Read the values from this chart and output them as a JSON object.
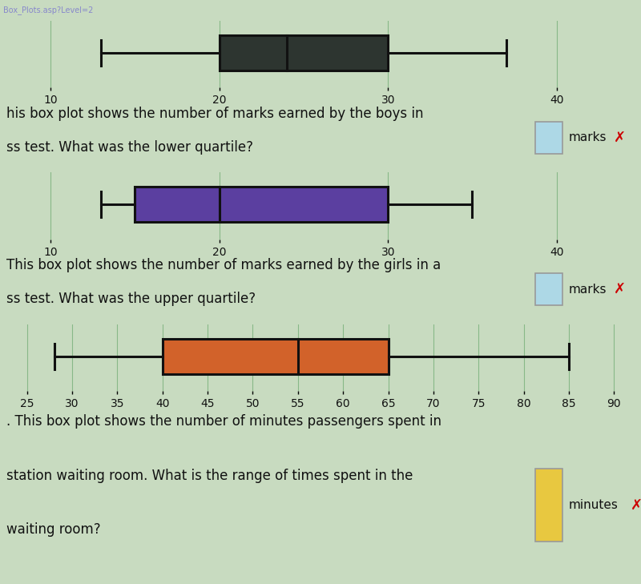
{
  "plots": [
    {
      "whisker_min": 13,
      "q1": 20,
      "median": 24,
      "q3": 30,
      "whisker_max": 37,
      "color": "#2d3530",
      "edge_color": "#111111",
      "axis_min": 7,
      "axis_max": 45,
      "ticks": [
        10,
        20,
        30,
        40
      ],
      "question_text1": "his box plot shows the number of marks earned by the boys in",
      "question_text2": "ss test. What was the lower quartile?",
      "answer_label": "marks",
      "answer_box_color": "#add8e6",
      "cross_color": "#cc0000"
    },
    {
      "whisker_min": 13,
      "q1": 15,
      "median": 20,
      "q3": 30,
      "whisker_max": 35,
      "color": "#5b3fa0",
      "edge_color": "#111111",
      "axis_min": 7,
      "axis_max": 45,
      "ticks": [
        10,
        20,
        30,
        40
      ],
      "question_text1": "This box plot shows the number of marks earned by the girls in a",
      "question_text2": "ss test. What was the upper quartile?",
      "answer_label": "marks",
      "answer_box_color": "#add8e6",
      "cross_color": "#cc0000"
    },
    {
      "whisker_min": 28,
      "q1": 40,
      "median": 55,
      "q3": 65,
      "whisker_max": 85,
      "color": "#d2622a",
      "edge_color": "#111111",
      "axis_min": 22,
      "axis_max": 93,
      "ticks": [
        25,
        30,
        35,
        40,
        45,
        50,
        55,
        60,
        65,
        70,
        75,
        80,
        85,
        90
      ],
      "question_text1": ". This box plot shows the number of minutes passengers spent in",
      "question_text2": "station waiting room. What is the range of times spent in the",
      "question_text3": "waiting room?",
      "answer_label": "minutes",
      "answer_box_color": "#e8c840",
      "cross_color": "#cc0000"
    }
  ],
  "bg_color_plot": "#c8dbc0",
  "bg_color_text": "#f0f0f0",
  "grid_color": "#88b888",
  "text_color": "#111111",
  "top_bar_color": "#1a1a3a",
  "top_bar_text": "Box_Plots.asp?Level=2",
  "top_bar_text_color": "#8888cc",
  "font_size_tick": 10,
  "font_size_question": 12,
  "font_size_answer": 11,
  "fig_width": 8.0,
  "fig_height": 7.29,
  "dpi": 100
}
